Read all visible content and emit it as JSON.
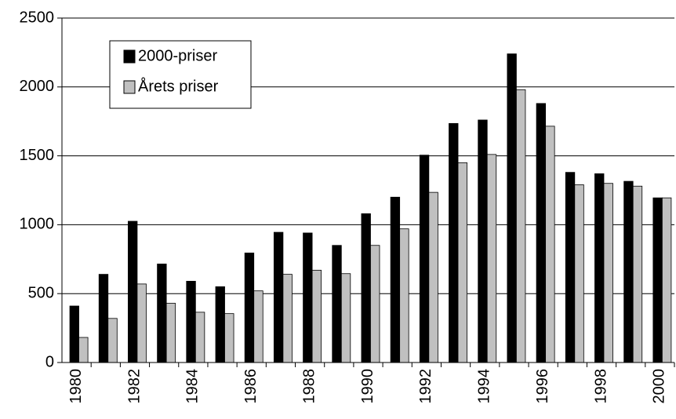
{
  "chart_data": {
    "type": "bar",
    "categories": [
      "1980",
      null,
      "1982",
      null,
      "1984",
      null,
      "1986",
      null,
      "1988",
      null,
      "1990",
      null,
      "1992",
      null,
      "1994",
      null,
      "1996",
      null,
      "1998",
      null,
      "2000"
    ],
    "series": [
      {
        "name": "2000-priser",
        "color": "#000000",
        "values": [
          410,
          640,
          1025,
          715,
          590,
          550,
          795,
          945,
          940,
          850,
          1080,
          1200,
          1505,
          1735,
          1760,
          2240,
          1880,
          1380,
          1370,
          1315,
          1195
        ]
      },
      {
        "name": "Årets priser",
        "color": "#c0c0c0",
        "values": [
          182,
          320,
          570,
          430,
          365,
          355,
          520,
          640,
          670,
          645,
          850,
          970,
          1235,
          1450,
          1510,
          1980,
          1715,
          1290,
          1300,
          1280,
          1195
        ]
      }
    ],
    "ylim": [
      0,
      2500
    ],
    "yticks": [
      0,
      500,
      1000,
      1500,
      2000,
      2500
    ],
    "grid": true,
    "legend": "upper left"
  }
}
